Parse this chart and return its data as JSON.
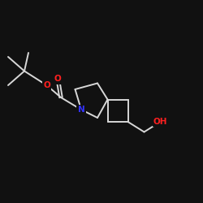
{
  "background_color": "#111111",
  "bond_color": "#d8d8d8",
  "atom_colors": {
    "O": "#ff2020",
    "N": "#3333ff",
    "C": "#d8d8d8"
  },
  "bond_width": 1.4,
  "font_size_atom": 7.5,
  "figsize": [
    2.5,
    2.5
  ],
  "dpi": 100,
  "xlim": [
    0,
    10
  ],
  "ylim": [
    0,
    10
  ]
}
